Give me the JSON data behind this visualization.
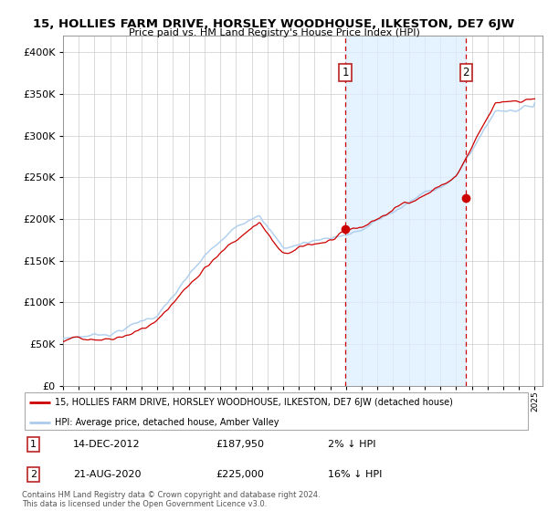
{
  "title": "15, HOLLIES FARM DRIVE, HORSLEY WOODHOUSE, ILKESTON, DE7 6JW",
  "subtitle": "Price paid vs. HM Land Registry's House Price Index (HPI)",
  "legend_property": "15, HOLLIES FARM DRIVE, HORSLEY WOODHOUSE, ILKESTON, DE7 6JW (detached house)",
  "legend_hpi": "HPI: Average price, detached house, Amber Valley",
  "annotation1_label": "1",
  "annotation1_date": "14-DEC-2012",
  "annotation1_price": "£187,950",
  "annotation1_hpi": "2% ↓ HPI",
  "annotation2_label": "2",
  "annotation2_date": "21-AUG-2020",
  "annotation2_price": "£225,000",
  "annotation2_hpi": "16% ↓ HPI",
  "footnote": "Contains HM Land Registry data © Crown copyright and database right 2024.\nThis data is licensed under the Open Government Licence v3.0.",
  "hpi_color": "#aaccee",
  "property_color": "#cc0000",
  "point_color": "#cc0000",
  "dashed_line_color": "#cc0000",
  "shade_color": "#ddeeff",
  "background_color": "#ffffff",
  "grid_color": "#cccccc",
  "ylim": [
    0,
    420000
  ],
  "yticks": [
    0,
    50000,
    100000,
    150000,
    200000,
    250000,
    300000,
    350000,
    400000
  ],
  "sale1_year": 2012.96,
  "sale1_value": 187950,
  "sale2_year": 2020.64,
  "sale2_value": 225000,
  "xstart": 1995,
  "xend": 2025.5
}
